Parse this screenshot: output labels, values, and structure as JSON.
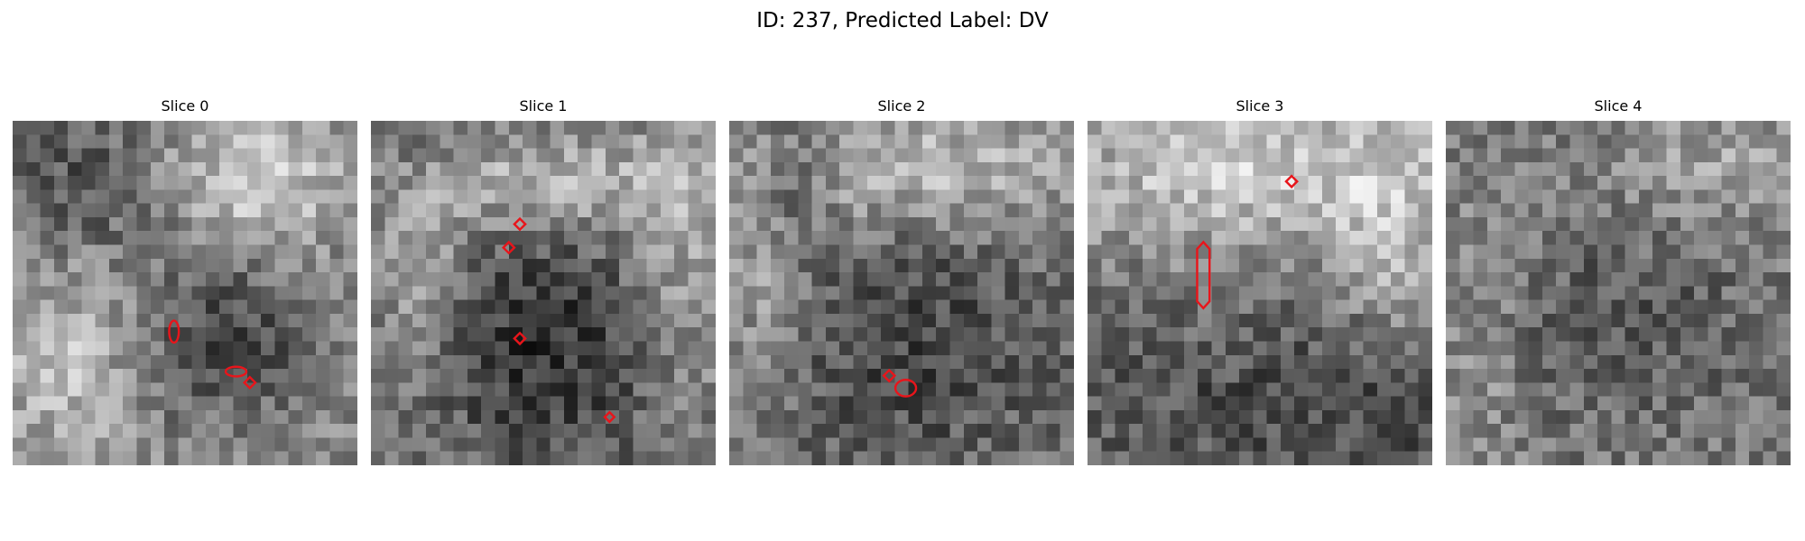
{
  "figure": {
    "title": "ID: 237, Predicted Label: DV"
  },
  "panels": [
    {
      "title": "Slice 0",
      "seed": 11,
      "base_fn": "s0",
      "contours": [
        {
          "shape": "ellipse",
          "cx": 11.7,
          "cy": 15.3,
          "rx": 0.35,
          "ry": 0.8
        },
        {
          "shape": "ellipse",
          "cx": 16.2,
          "cy": 18.2,
          "rx": 0.75,
          "ry": 0.35
        },
        {
          "shape": "diamond",
          "cx": 17.2,
          "cy": 19.0,
          "r": 0.4
        }
      ]
    },
    {
      "title": "Slice 1",
      "seed": 23,
      "base_fn": "s1",
      "contours": [
        {
          "shape": "diamond",
          "cx": 10.8,
          "cy": 7.5,
          "r": 0.4
        },
        {
          "shape": "diamond",
          "cx": 10.0,
          "cy": 9.2,
          "r": 0.4
        },
        {
          "shape": "diamond",
          "cx": 10.8,
          "cy": 15.8,
          "r": 0.4
        },
        {
          "shape": "diamond",
          "cx": 17.3,
          "cy": 21.5,
          "r": 0.35
        }
      ]
    },
    {
      "title": "Slice 2",
      "seed": 37,
      "base_fn": "s2",
      "contours": [
        {
          "shape": "diamond",
          "cx": 11.6,
          "cy": 18.5,
          "r": 0.4
        },
        {
          "shape": "ellipse",
          "cx": 12.8,
          "cy": 19.4,
          "rx": 0.75,
          "ry": 0.6
        }
      ]
    },
    {
      "title": "Slice 3",
      "seed": 51,
      "base_fn": "s3",
      "contours": [
        {
          "shape": "hexv",
          "cx": 8.4,
          "cy": 11.2,
          "rx": 0.45,
          "ry": 2.4
        },
        {
          "shape": "diamond",
          "cx": 14.8,
          "cy": 4.4,
          "r": 0.4
        }
      ]
    },
    {
      "title": "Slice 4",
      "seed": 67,
      "base_fn": "s4",
      "contours": []
    }
  ],
  "colors": {
    "contour": "#e8151b"
  }
}
